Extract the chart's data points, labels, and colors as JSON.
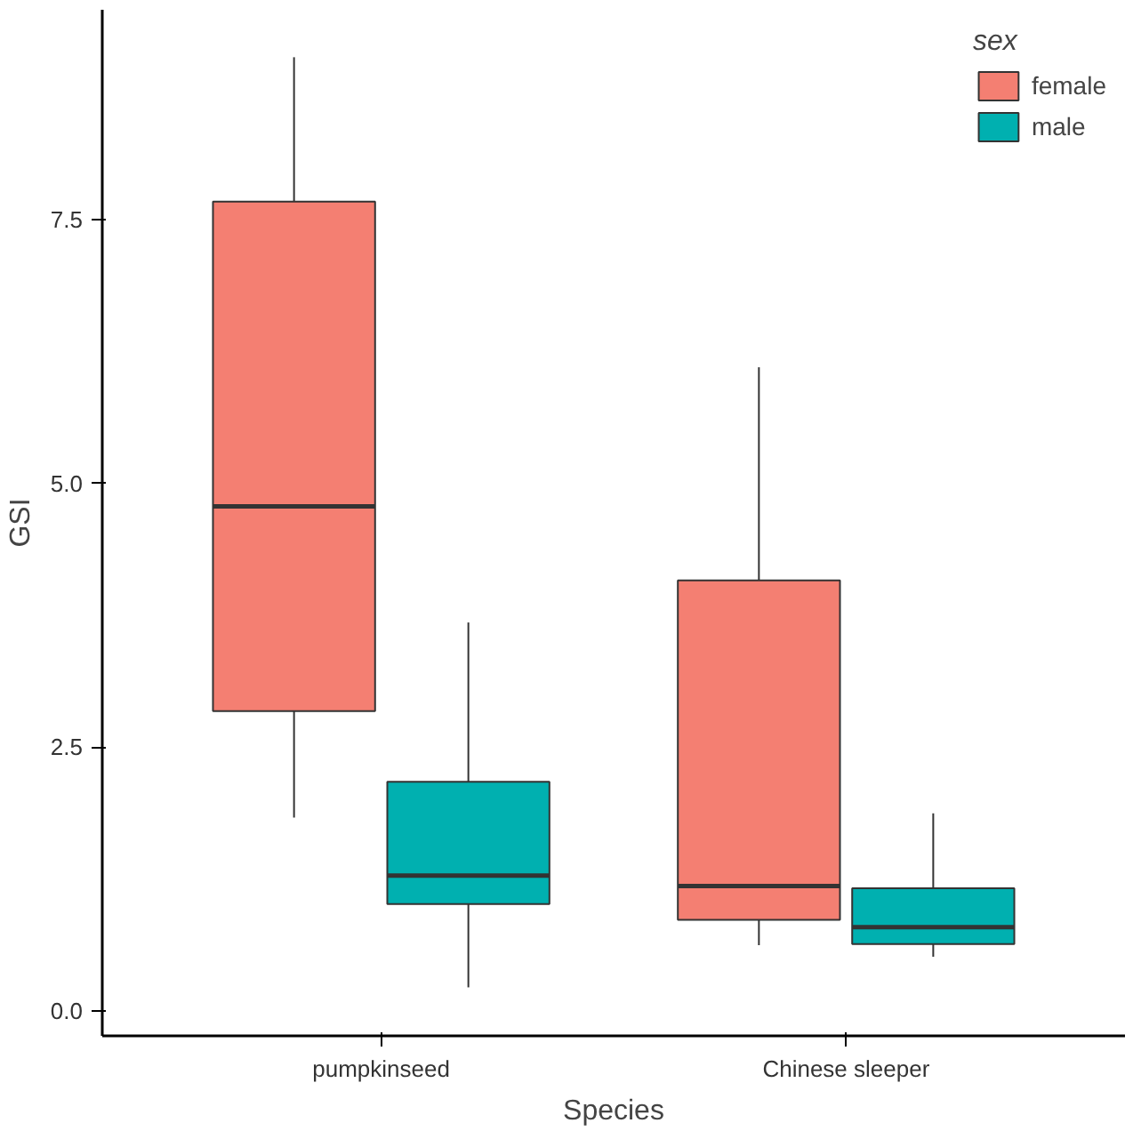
{
  "chart_data": {
    "type": "box",
    "xlabel": "Species",
    "ylabel": "GSI",
    "legend_title": "sex",
    "categories": [
      "pumpkinseed",
      "Chinese sleeper"
    ],
    "series": [
      {
        "name": "female",
        "color": "#f47f72",
        "boxes": [
          {
            "low": 1.83,
            "q1": 2.84,
            "median": 4.78,
            "q3": 7.67,
            "high": 9.04
          },
          {
            "low": 0.62,
            "q1": 0.86,
            "median": 1.18,
            "q3": 4.08,
            "high": 6.1
          }
        ]
      },
      {
        "name": "male",
        "color": "#00b0b0",
        "boxes": [
          {
            "low": 0.22,
            "q1": 1.01,
            "median": 1.28,
            "q3": 2.17,
            "high": 3.68
          },
          {
            "low": 0.51,
            "q1": 0.63,
            "median": 0.79,
            "q3": 1.16,
            "high": 1.87
          }
        ]
      }
    ],
    "ylim": [
      -0.24,
      9.49
    ],
    "yticks": [
      {
        "value": 0,
        "label": "0.0"
      },
      {
        "value": 2.5,
        "label": "2.5"
      },
      {
        "value": 5,
        "label": "5.0"
      },
      {
        "value": 7.5,
        "label": "7.5"
      }
    ],
    "grid": false,
    "legend": "top right"
  }
}
